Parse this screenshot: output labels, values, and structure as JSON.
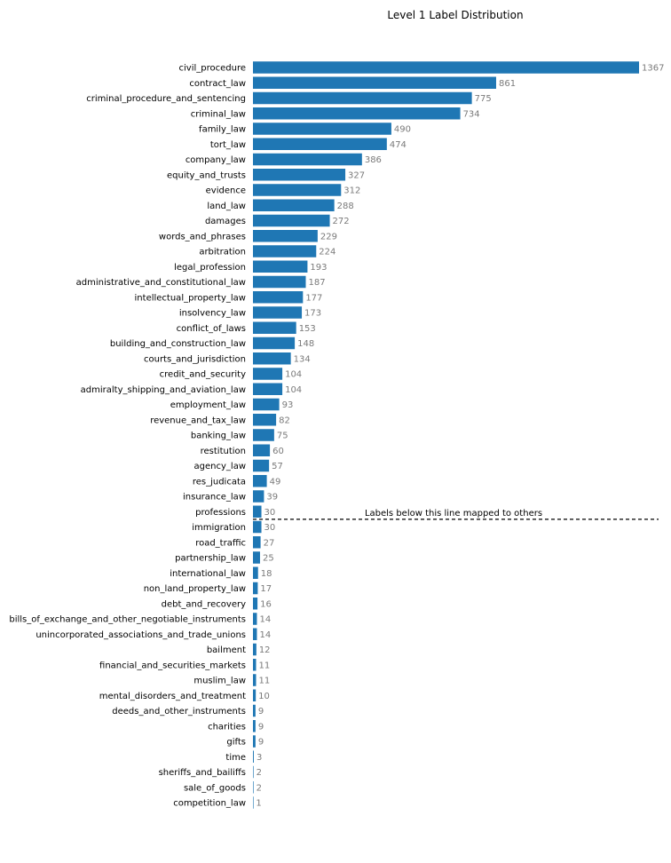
{
  "chart_data": {
    "type": "bar",
    "orientation": "horizontal",
    "title": "Level 1 Label Distribution",
    "xlabel": "",
    "ylabel": "",
    "grid": false,
    "bar_color": "#1f77b4",
    "value_label_color": "#7a7a7a",
    "categories": [
      "civil_procedure",
      "contract_law",
      "criminal_procedure_and_sentencing",
      "criminal_law",
      "family_law",
      "tort_law",
      "company_law",
      "equity_and_trusts",
      "evidence",
      "land_law",
      "damages",
      "words_and_phrases",
      "arbitration",
      "legal_profession",
      "administrative_and_constitutional_law",
      "intellectual_property_law",
      "insolvency_law",
      "conflict_of_laws",
      "building_and_construction_law",
      "courts_and_jurisdiction",
      "credit_and_security",
      "admiralty_shipping_and_aviation_law",
      "employment_law",
      "revenue_and_tax_law",
      "banking_law",
      "restitution",
      "agency_law",
      "res_judicata",
      "insurance_law",
      "professions",
      "immigration",
      "road_traffic",
      "partnership_law",
      "international_law",
      "non_land_property_law",
      "debt_and_recovery",
      "bills_of_exchange_and_other_negotiable_instruments",
      "unincorporated_associations_and_trade_unions",
      "bailment",
      "financial_and_securities_markets",
      "muslim_law",
      "mental_disorders_and_treatment",
      "deeds_and_other_instruments",
      "charities",
      "gifts",
      "time",
      "sheriffs_and_bailiffs",
      "sale_of_goods",
      "competition_law"
    ],
    "values": [
      1367,
      861,
      775,
      734,
      490,
      474,
      386,
      327,
      312,
      288,
      272,
      229,
      224,
      193,
      187,
      177,
      173,
      153,
      148,
      134,
      104,
      104,
      93,
      82,
      75,
      60,
      57,
      49,
      39,
      30,
      30,
      27,
      25,
      18,
      17,
      16,
      14,
      14,
      12,
      11,
      11,
      10,
      9,
      9,
      9,
      3,
      2,
      2,
      1
    ],
    "threshold_line": {
      "after_category": "professions",
      "style": "dashed",
      "label": "Labels below this line mapped to others"
    }
  }
}
